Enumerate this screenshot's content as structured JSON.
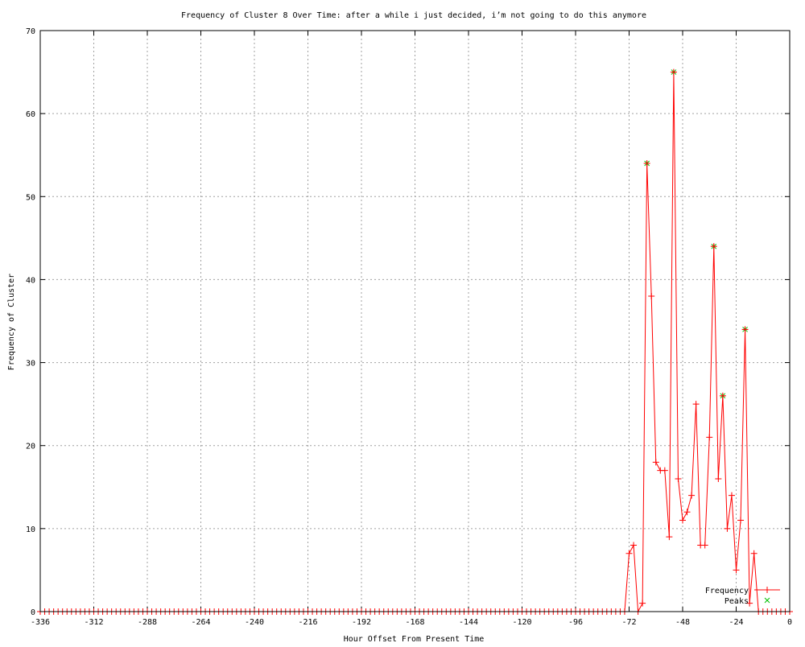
{
  "chart_data": {
    "type": "line",
    "title": "Frequency of Cluster 8 Over Time: after a while i just decided, i’m not going to do this anymore",
    "xlabel": "Hour Offset From Present Time",
    "ylabel": "Frequency of Cluster",
    "xlim": [
      -336,
      0
    ],
    "ylim": [
      0,
      70
    ],
    "xticks": [
      -336,
      -312,
      -288,
      -264,
      -240,
      -216,
      -192,
      -168,
      -144,
      -120,
      -96,
      -72,
      -48,
      -24,
      0
    ],
    "yticks": [
      0,
      10,
      20,
      30,
      40,
      50,
      60,
      70
    ],
    "grid": true,
    "legend_position": "bottom-right",
    "series": [
      {
        "name": "Frequency",
        "color": "#ff0000",
        "marker": "plus",
        "x_start": -336,
        "x_step": 2,
        "nonzero": {
          "-72": 7,
          "-70": 8,
          "-68": 0,
          "-66": 1,
          "-64": 54,
          "-62": 38,
          "-60": 18,
          "-58": 17,
          "-56": 17,
          "-54": 9,
          "-52": 65,
          "-50": 16,
          "-48": 11,
          "-46": 12,
          "-44": 14,
          "-42": 25,
          "-40": 8,
          "-38": 8,
          "-36": 21,
          "-34": 44,
          "-32": 16,
          "-30": 26,
          "-28": 10,
          "-26": 14,
          "-24": 5,
          "-22": 11,
          "-20": 34,
          "-18": 1,
          "-16": 7
        }
      },
      {
        "name": "Peaks",
        "color": "#00c000",
        "marker": "x",
        "points": [
          [
            -64,
            54
          ],
          [
            -52,
            65
          ],
          [
            -34,
            44
          ],
          [
            -30,
            26
          ],
          [
            -20,
            34
          ]
        ]
      }
    ]
  }
}
